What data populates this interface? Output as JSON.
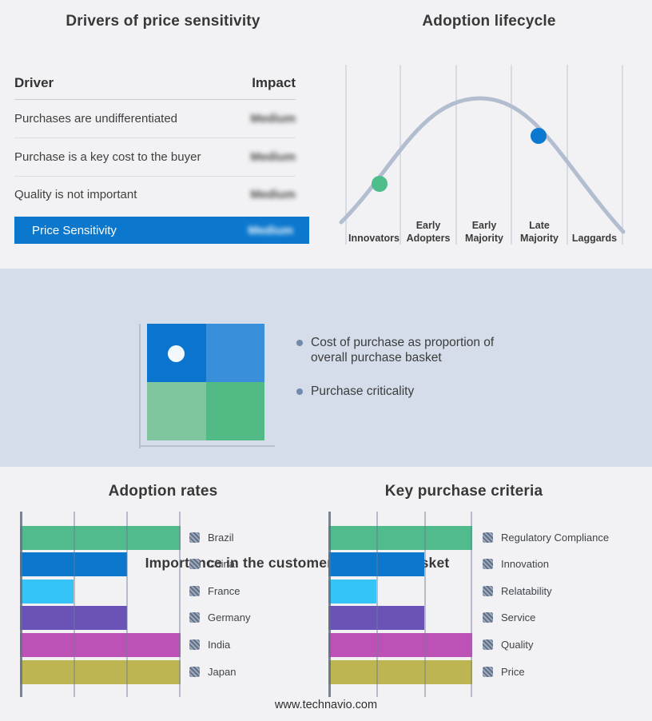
{
  "colors": {
    "page_bg": "#f2f2f4",
    "band_bg": "#d4dde9",
    "accent_blue": "#0b78ce",
    "curve": "#b2bdd0",
    "marker_green": "#4dbd8c",
    "marker_blue": "#0c79d1",
    "bullet_dot": "#7189ab",
    "quadrant": {
      "top_left": "#0b74cf",
      "top_right": "#3a8fdb",
      "bottom_left": "#7fc59e",
      "bottom_right": "#52ba85"
    }
  },
  "middle_panel": {
    "title": "Importance in the customer purchase basket",
    "bullets": [
      "Cost of purchase as proportion of\noverall purchase basket",
      "Purchase criticality"
    ]
  },
  "footer": {
    "url": "www.technavio.com"
  },
  "chart_data": [
    {
      "type": "table",
      "title": "Drivers of price sensitivity",
      "columns": [
        "Driver",
        "Impact"
      ],
      "rows": [
        [
          "Purchases are undifferentiated",
          "Medium"
        ],
        [
          "Purchase is a key cost to the buyer",
          "Medium"
        ],
        [
          "Quality is not important",
          "Medium"
        ]
      ],
      "highlight_row": [
        "Price Sensitivity",
        "Medium"
      ],
      "impact_values_blurred": true
    },
    {
      "type": "line",
      "subtype": "bell-curve",
      "title": "Adoption lifecycle",
      "categories": [
        "Innovators",
        "Early Adopters",
        "Early Majority",
        "Late Majority",
        "Laggards"
      ],
      "stage_labels": [
        "Innovators",
        "Early\nAdopters",
        "Early\nMajority",
        "Late\nMajority",
        "Laggards"
      ],
      "markers": [
        {
          "on": "rising curve, Innovators / Early Adopters boundary",
          "color": "#4dbd8c"
        },
        {
          "on": "falling curve, Late Majority",
          "color": "#0c79d1"
        }
      ],
      "grid": "vertical-stage-dividers"
    },
    {
      "type": "bar",
      "orientation": "horizontal",
      "title": "Adoption rates",
      "categories": [
        "Brazil",
        "China",
        "France",
        "Germany",
        "India",
        "Japan"
      ],
      "values": [
        100,
        66.7,
        33.3,
        66.7,
        100,
        100
      ],
      "xlim": [
        0,
        100
      ],
      "colors": [
        "#52bb8d",
        "#0b78ce",
        "#36c3f5",
        "#6b52b6",
        "#bd52b6",
        "#bcb551"
      ],
      "grid": true,
      "legend_position": "right"
    },
    {
      "type": "bar",
      "orientation": "horizontal",
      "title": "Key purchase criteria",
      "categories": [
        "Regulatory Compliance",
        "Innovation",
        "Relatability",
        "Service",
        "Quality",
        "Price"
      ],
      "values": [
        100,
        66.7,
        33.3,
        66.7,
        100,
        100
      ],
      "xlim": [
        0,
        100
      ],
      "colors": [
        "#52bb8d",
        "#0b78ce",
        "#36c3f5",
        "#6b52b6",
        "#bd52b6",
        "#bcb551"
      ],
      "grid": true,
      "legend_position": "right"
    }
  ]
}
